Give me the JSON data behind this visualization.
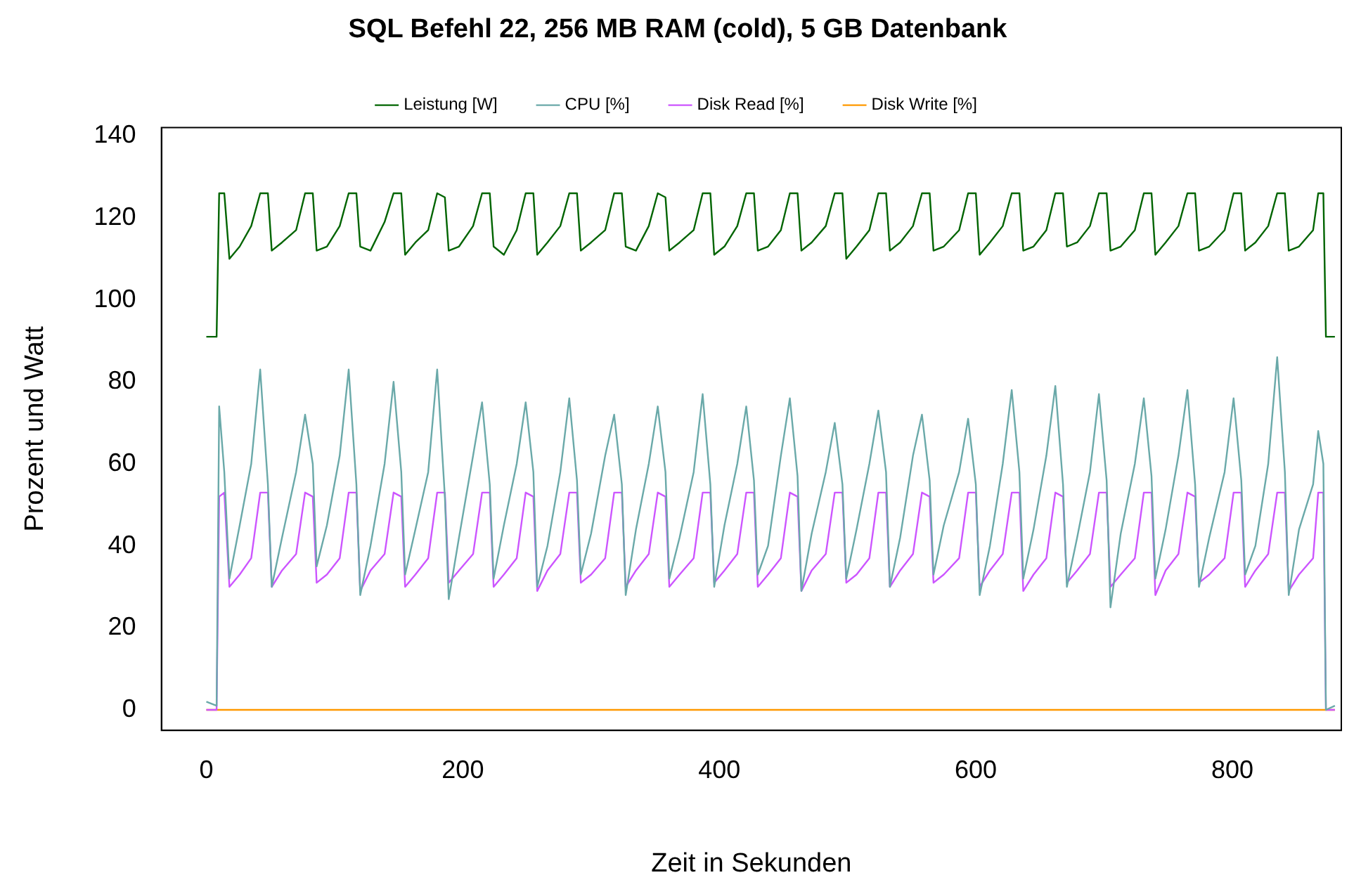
{
  "chart_data": {
    "type": "line",
    "title": "SQL Befehl 22, 256 MB RAM (cold), 5 GB Datenbank",
    "xlabel": "Zeit in Sekunden",
    "ylabel": "Prozent und Watt",
    "legend": "top",
    "xlim": [
      -35,
      885
    ],
    "xticks": [
      0,
      200,
      400,
      600,
      800
    ],
    "ylim": [
      -5,
      142
    ],
    "yticks": [
      0,
      20,
      40,
      60,
      80,
      100,
      120,
      140
    ],
    "x": [
      0,
      8,
      10,
      14,
      18,
      26,
      35,
      42,
      48,
      51,
      59,
      70,
      77,
      83,
      86,
      94,
      104,
      111,
      117,
      120,
      128,
      139,
      146,
      152,
      155,
      163,
      173,
      180,
      186,
      189,
      197,
      208,
      215,
      221,
      224,
      232,
      242,
      249,
      255,
      258,
      266,
      276,
      283,
      289,
      292,
      300,
      311,
      318,
      324,
      327,
      335,
      345,
      352,
      358,
      361,
      369,
      380,
      387,
      393,
      396,
      404,
      414,
      421,
      427,
      430,
      438,
      448,
      455,
      461,
      464,
      472,
      483,
      490,
      496,
      499,
      507,
      517,
      524,
      530,
      533,
      541,
      551,
      558,
      564,
      567,
      575,
      587,
      594,
      600,
      603,
      611,
      621,
      628,
      634,
      637,
      645,
      655,
      662,
      668,
      671,
      679,
      689,
      696,
      702,
      705,
      713,
      724,
      731,
      737,
      740,
      748,
      758,
      765,
      771,
      774,
      782,
      794,
      801,
      807,
      810,
      818,
      828,
      835,
      841,
      844,
      852,
      863,
      867,
      871,
      873,
      880
    ],
    "series": [
      {
        "name": "Leistung [W]",
        "color": "#006400",
        "values": [
          91,
          91,
          126,
          126,
          110,
          113,
          118,
          126,
          126,
          112,
          114,
          117,
          126,
          126,
          112,
          113,
          118,
          126,
          126,
          113,
          112,
          119,
          126,
          126,
          111,
          114,
          117,
          126,
          125,
          112,
          113,
          118,
          126,
          126,
          113,
          111,
          117,
          126,
          126,
          111,
          114,
          118,
          126,
          126,
          112,
          114,
          117,
          126,
          126,
          113,
          112,
          118,
          126,
          125,
          112,
          114,
          117,
          126,
          126,
          111,
          113,
          118,
          126,
          126,
          112,
          113,
          117,
          126,
          126,
          112,
          114,
          118,
          126,
          126,
          110,
          113,
          117,
          126,
          126,
          112,
          114,
          118,
          126,
          126,
          112,
          113,
          117,
          126,
          126,
          111,
          114,
          118,
          126,
          126,
          112,
          113,
          117,
          126,
          126,
          113,
          114,
          118,
          126,
          126,
          112,
          113,
          117,
          126,
          126,
          111,
          114,
          118,
          126,
          126,
          112,
          113,
          117,
          126,
          126,
          112,
          114,
          118,
          126,
          126,
          112,
          113,
          117,
          126,
          126,
          91,
          91
        ]
      },
      {
        "name": "CPU [%]",
        "color": "#6aa9a9",
        "values": [
          2,
          1,
          74,
          58,
          32,
          45,
          60,
          83,
          55,
          30,
          42,
          58,
          72,
          60,
          35,
          45,
          62,
          83,
          55,
          28,
          40,
          60,
          80,
          58,
          33,
          44,
          58,
          83,
          52,
          27,
          42,
          62,
          75,
          55,
          32,
          45,
          60,
          75,
          58,
          30,
          40,
          58,
          76,
          56,
          33,
          43,
          62,
          72,
          55,
          28,
          44,
          60,
          74,
          58,
          32,
          42,
          58,
          77,
          55,
          30,
          45,
          60,
          74,
          56,
          33,
          40,
          62,
          76,
          57,
          29,
          43,
          58,
          70,
          55,
          32,
          44,
          60,
          73,
          58,
          30,
          42,
          62,
          72,
          56,
          33,
          45,
          58,
          71,
          55,
          28,
          40,
          60,
          78,
          58,
          32,
          44,
          62,
          79,
          55,
          30,
          42,
          58,
          77,
          56,
          25,
          43,
          60,
          76,
          57,
          32,
          44,
          62,
          78,
          55,
          30,
          42,
          58,
          76,
          56,
          33,
          40,
          60,
          86,
          58,
          28,
          44,
          55,
          68,
          60,
          0,
          1
        ]
      },
      {
        "name": "Disk Read [%]",
        "color": "#cc55ff",
        "values": [
          0,
          0,
          52,
          53,
          30,
          33,
          37,
          53,
          53,
          30,
          34,
          38,
          53,
          52,
          31,
          33,
          37,
          53,
          53,
          29,
          34,
          38,
          53,
          52,
          30,
          33,
          37,
          53,
          53,
          31,
          34,
          38,
          53,
          53,
          30,
          33,
          37,
          53,
          52,
          29,
          34,
          38,
          53,
          53,
          31,
          33,
          37,
          53,
          53,
          30,
          34,
          38,
          53,
          52,
          30,
          33,
          37,
          53,
          53,
          31,
          34,
          38,
          53,
          53,
          30,
          33,
          37,
          53,
          52,
          29,
          34,
          38,
          53,
          53,
          31,
          33,
          37,
          53,
          53,
          30,
          34,
          38,
          53,
          52,
          31,
          33,
          37,
          53,
          53,
          30,
          34,
          38,
          53,
          53,
          29,
          33,
          37,
          53,
          52,
          31,
          34,
          38,
          53,
          53,
          30,
          33,
          37,
          53,
          53,
          28,
          34,
          38,
          53,
          52,
          31,
          33,
          37,
          53,
          53,
          30,
          34,
          38,
          53,
          53,
          29,
          33,
          37,
          53,
          53,
          0,
          0
        ]
      },
      {
        "name": "Disk Write [%]",
        "color": "#ff9900",
        "x": [
          0,
          880
        ],
        "values": [
          0,
          0
        ]
      }
    ]
  }
}
